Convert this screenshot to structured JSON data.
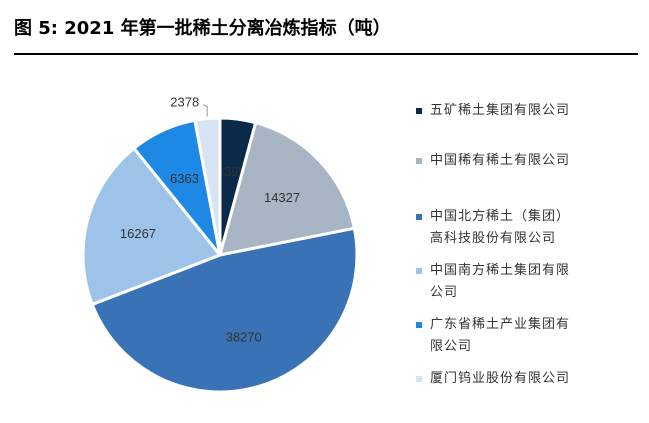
{
  "figure": {
    "title": "图 5:  2021 年第一批稀土分离冶炼指标（吨）"
  },
  "chart_data": {
    "type": "pie",
    "title": "",
    "slices": [
      {
        "label": "五矿稀土集团有限公司",
        "value": 3395,
        "color": "#0b2a4a"
      },
      {
        "label": "中国稀有稀土有限公司",
        "value": 14327,
        "color": "#a7b5c4"
      },
      {
        "label": "中国北方稀土（集团）高科技股份有限公司",
        "value": 38270,
        "color": "#3a73b5"
      },
      {
        "label": "中国南方稀土集团有限公司",
        "value": 16267,
        "color": "#9ec3e8"
      },
      {
        "label": "广东省稀土产业集团有限公司",
        "value": 6363,
        "color": "#1e88e5"
      },
      {
        "label": "厦门钨业股份有限公司",
        "value": 2378,
        "color": "#d7e4f4"
      }
    ],
    "legend_position": "right",
    "start": "top",
    "direction": "clockwise"
  },
  "legend": {
    "items": [
      {
        "line1": "五矿稀土集团有限公司",
        "line2": ""
      },
      {
        "line1": "中国稀有稀土有限公司",
        "line2": ""
      },
      {
        "line1": "中国北方稀土（集团）",
        "line2": "高科技股份有限公司"
      },
      {
        "line1": "中国南方稀土集团有限",
        "line2": "公司"
      },
      {
        "line1": "广东省稀土产业集团有",
        "line2": "限公司"
      },
      {
        "line1": "厦门钨业股份有限公司",
        "line2": ""
      }
    ]
  }
}
